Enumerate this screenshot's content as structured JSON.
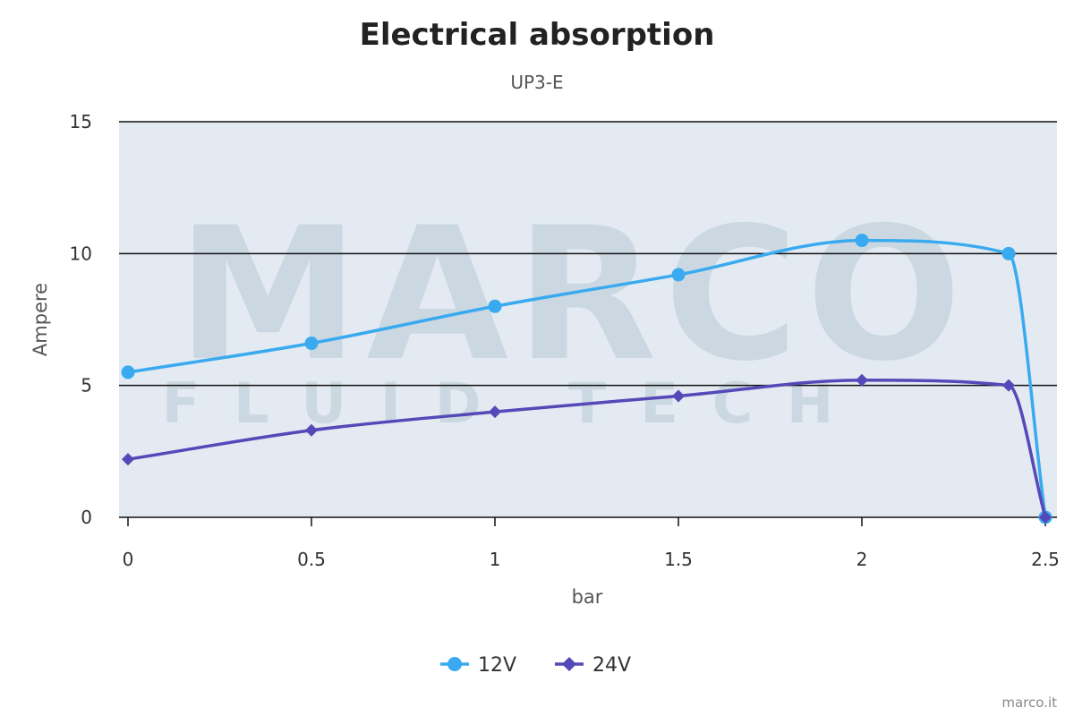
{
  "chart_data": {
    "type": "line",
    "title": "Electrical absorption",
    "subtitle": "UP3-E",
    "xlabel": "bar",
    "ylabel": "Ampere",
    "xlim": [
      0,
      2.5
    ],
    "ylim": [
      0,
      15
    ],
    "x_ticks": [
      "0",
      "0.5",
      "1",
      "1.5",
      "2",
      "2.5"
    ],
    "y_ticks": [
      "0",
      "5",
      "10",
      "15"
    ],
    "grid": true,
    "legend_position": "bottom-center",
    "series": [
      {
        "name": "12V",
        "color": "#3aaaf0",
        "marker": "circle",
        "points": [
          [
            0,
            5.5
          ],
          [
            0.5,
            6.6
          ],
          [
            1,
            8.0
          ],
          [
            1.5,
            9.2
          ],
          [
            2,
            10.5
          ],
          [
            2.4,
            10.0
          ],
          [
            2.5,
            0
          ]
        ]
      },
      {
        "name": "24V",
        "color": "#5548b8",
        "marker": "diamond",
        "points": [
          [
            0,
            2.2
          ],
          [
            0.5,
            3.3
          ],
          [
            1,
            4.0
          ],
          [
            1.5,
            4.6
          ],
          [
            2,
            5.2
          ],
          [
            2.4,
            5.0
          ],
          [
            2.5,
            0
          ]
        ]
      }
    ]
  },
  "watermark": {
    "brand": "MARCO",
    "tagline": "FLUID TECH",
    "registered": "®"
  },
  "credit": "marco.it"
}
